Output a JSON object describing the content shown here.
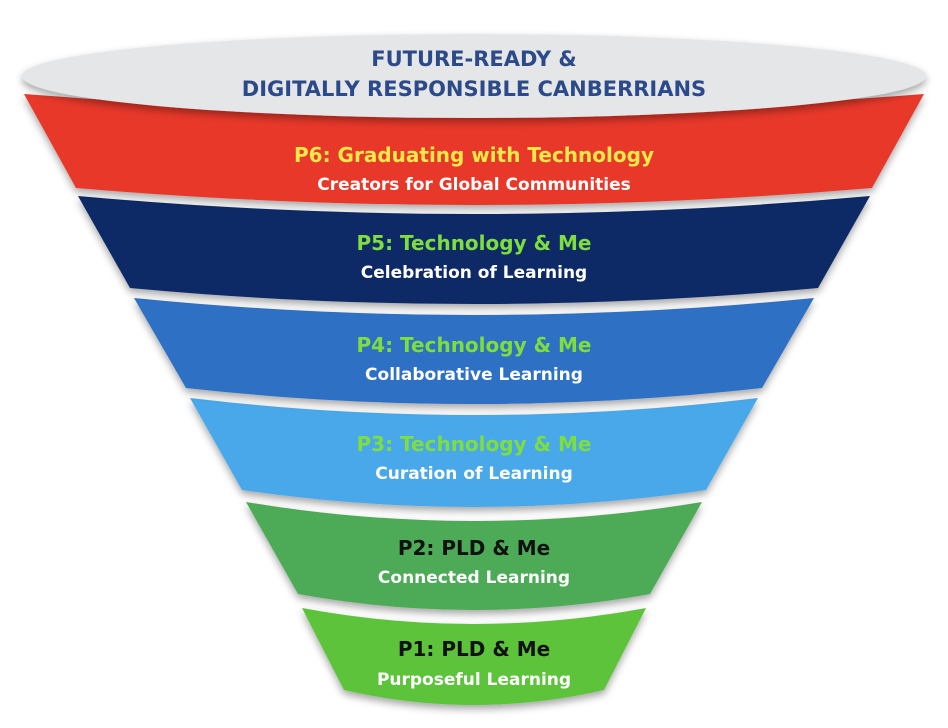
{
  "title": {
    "line1": "FUTURE-READY &",
    "line2": "DIGITALLY RESPONSIBLE CANBERRIANS"
  },
  "levels": [
    {
      "id": "p6",
      "heading": "P6: Graduating with Technology",
      "subheading": "Creators for Global Communities",
      "fill": "#e8392a",
      "heading_color": "#ffe94a",
      "subheading_color": "#ffffff"
    },
    {
      "id": "p5",
      "heading": "P5: Technology & Me",
      "subheading": "Celebration of Learning",
      "fill": "#0e2a66",
      "heading_color": "#7dde3e",
      "subheading_color": "#ffffff"
    },
    {
      "id": "p4",
      "heading": "P4: Technology & Me",
      "subheading": "Collaborative Learning",
      "fill": "#2f6fc4",
      "heading_color": "#7dde3e",
      "subheading_color": "#ffffff"
    },
    {
      "id": "p3",
      "heading": "P3: Technology & Me",
      "subheading": "Curation of Learning",
      "fill": "#4aa8ea",
      "heading_color": "#7dde3e",
      "subheading_color": "#ffffff"
    },
    {
      "id": "p2",
      "heading": "P2: PLD & Me",
      "subheading": "Connected Learning",
      "fill": "#4eaa57",
      "heading_color": "#111111",
      "subheading_color": "#ffffff"
    },
    {
      "id": "p1",
      "heading": "P1: PLD & Me",
      "subheading": "Purposeful Learning",
      "fill": "#5cc33a",
      "heading_color": "#111111",
      "subheading_color": "#ffffff"
    }
  ],
  "colors": {
    "top_ellipse": "#e4e6e8",
    "title_text": "#2c4a8a"
  }
}
